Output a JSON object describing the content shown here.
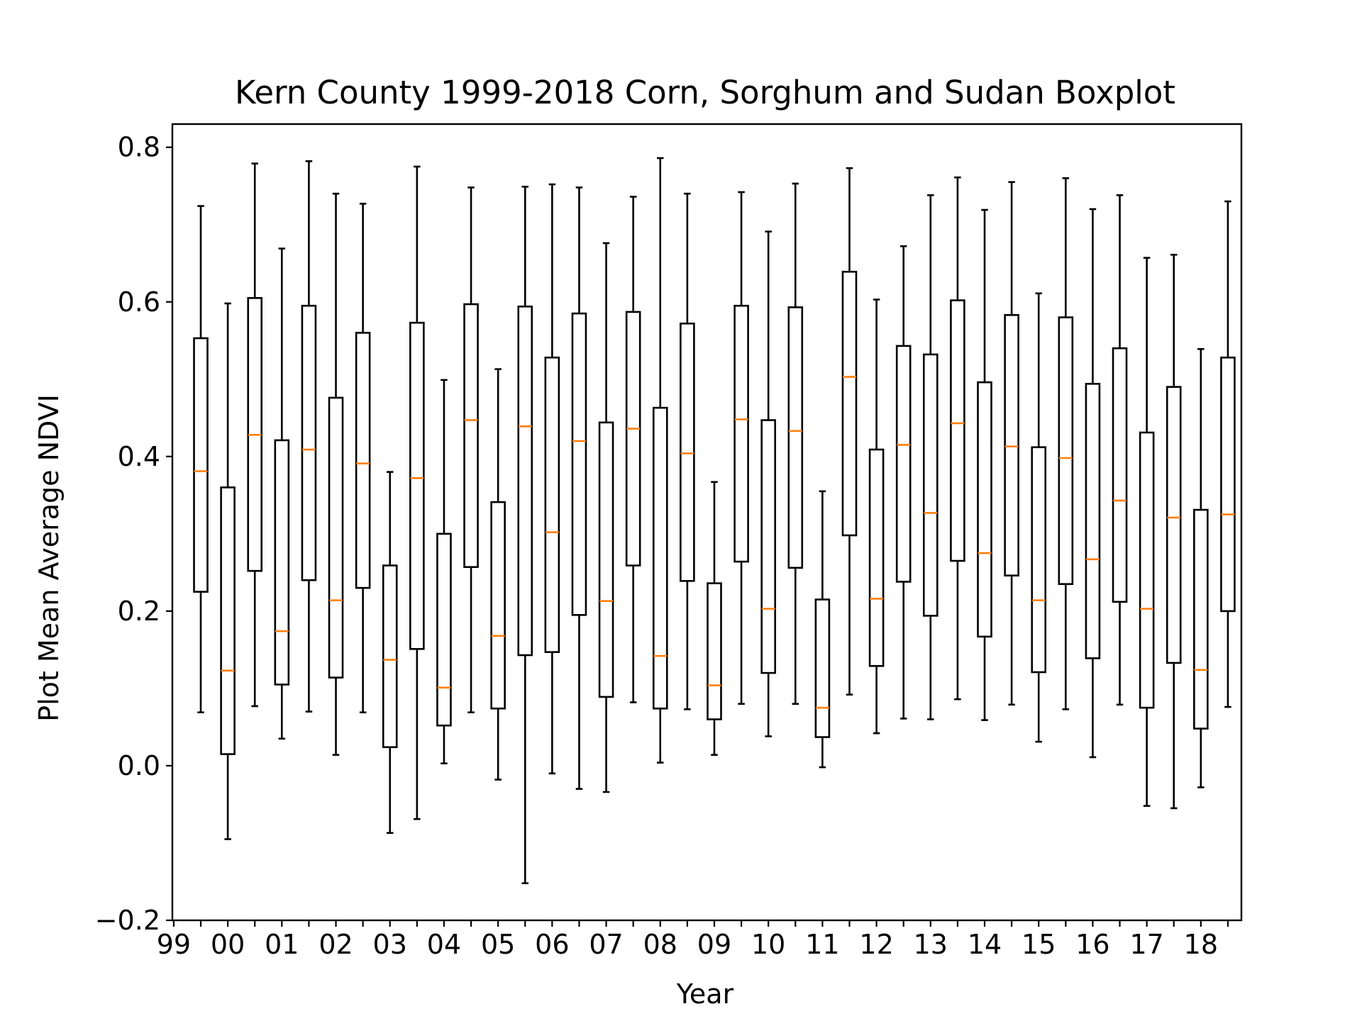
{
  "colors": {
    "box": "#000000",
    "median": "#ff7f0e",
    "background": "#ffffff"
  },
  "chart_data": {
    "type": "box",
    "title": "Kern County 1999-2018 Corn, Sorghum and Sudan Boxplot",
    "xlabel": "Year",
    "ylabel": "Plot Mean Average NDVI",
    "xlim": [
      -0.05,
      39.5
    ],
    "ylim": [
      -0.2,
      0.83
    ],
    "y_ticks": [
      "−0.2",
      "0.0",
      "0.2",
      "0.4",
      "0.6",
      "0.8"
    ],
    "y_tick_values": [
      -0.2,
      0.0,
      0.2,
      0.4,
      0.6,
      0.8
    ],
    "x_tick_labels": [
      "99",
      "00",
      "01",
      "02",
      "03",
      "04",
      "05",
      "06",
      "07",
      "08",
      "09",
      "10",
      "11",
      "12",
      "13",
      "14",
      "15",
      "16",
      "17",
      "18"
    ],
    "x_tick_label_positions": [
      0,
      2,
      4,
      6,
      8,
      10,
      12,
      14,
      16,
      18,
      20,
      22,
      24,
      26,
      28,
      30,
      32,
      34,
      36,
      38
    ],
    "x_minor_tick_positions": [
      1,
      3,
      5,
      7,
      9,
      11,
      13,
      15,
      17,
      19,
      21,
      23,
      25,
      27,
      29,
      31,
      33,
      35,
      37,
      39
    ],
    "grid": false,
    "boxes": [
      {
        "x": 1,
        "whislo": 0.069,
        "q1": 0.225,
        "med": 0.381,
        "q3": 0.553,
        "whishi": 0.724
      },
      {
        "x": 2,
        "whislo": -0.095,
        "q1": 0.015,
        "med": 0.123,
        "q3": 0.36,
        "whishi": 0.598
      },
      {
        "x": 3,
        "whislo": 0.077,
        "q1": 0.252,
        "med": 0.428,
        "q3": 0.605,
        "whishi": 0.779
      },
      {
        "x": 4,
        "whislo": 0.035,
        "q1": 0.105,
        "med": 0.174,
        "q3": 0.421,
        "whishi": 0.669
      },
      {
        "x": 5,
        "whislo": 0.07,
        "q1": 0.24,
        "med": 0.409,
        "q3": 0.595,
        "whishi": 0.782
      },
      {
        "x": 6,
        "whislo": 0.014,
        "q1": 0.114,
        "med": 0.214,
        "q3": 0.476,
        "whishi": 0.74
      },
      {
        "x": 7,
        "whislo": 0.069,
        "q1": 0.23,
        "med": 0.391,
        "q3": 0.56,
        "whishi": 0.727
      },
      {
        "x": 8,
        "whislo": -0.087,
        "q1": 0.024,
        "med": 0.137,
        "q3": 0.259,
        "whishi": 0.38
      },
      {
        "x": 9,
        "whislo": -0.069,
        "q1": 0.151,
        "med": 0.372,
        "q3": 0.573,
        "whishi": 0.775
      },
      {
        "x": 10,
        "whislo": 0.003,
        "q1": 0.052,
        "med": 0.101,
        "q3": 0.3,
        "whishi": 0.499
      },
      {
        "x": 11,
        "whislo": 0.069,
        "q1": 0.257,
        "med": 0.447,
        "q3": 0.597,
        "whishi": 0.748
      },
      {
        "x": 12,
        "whislo": -0.018,
        "q1": 0.074,
        "med": 0.168,
        "q3": 0.341,
        "whishi": 0.513
      },
      {
        "x": 13,
        "whislo": -0.152,
        "q1": 0.143,
        "med": 0.439,
        "q3": 0.594,
        "whishi": 0.749
      },
      {
        "x": 14,
        "whislo": -0.01,
        "q1": 0.147,
        "med": 0.302,
        "q3": 0.528,
        "whishi": 0.752
      },
      {
        "x": 15,
        "whislo": -0.03,
        "q1": 0.195,
        "med": 0.42,
        "q3": 0.585,
        "whishi": 0.748
      },
      {
        "x": 16,
        "whislo": -0.034,
        "q1": 0.089,
        "med": 0.213,
        "q3": 0.444,
        "whishi": 0.676
      },
      {
        "x": 17,
        "whislo": 0.082,
        "q1": 0.259,
        "med": 0.436,
        "q3": 0.587,
        "whishi": 0.736
      },
      {
        "x": 18,
        "whislo": 0.004,
        "q1": 0.074,
        "med": 0.142,
        "q3": 0.463,
        "whishi": 0.786
      },
      {
        "x": 19,
        "whislo": 0.073,
        "q1": 0.239,
        "med": 0.404,
        "q3": 0.572,
        "whishi": 0.74
      },
      {
        "x": 20,
        "whislo": 0.014,
        "q1": 0.06,
        "med": 0.104,
        "q3": 0.236,
        "whishi": 0.367
      },
      {
        "x": 21,
        "whislo": 0.08,
        "q1": 0.264,
        "med": 0.448,
        "q3": 0.595,
        "whishi": 0.742
      },
      {
        "x": 22,
        "whislo": 0.038,
        "q1": 0.12,
        "med": 0.203,
        "q3": 0.447,
        "whishi": 0.691
      },
      {
        "x": 23,
        "whislo": 0.08,
        "q1": 0.256,
        "med": 0.433,
        "q3": 0.593,
        "whishi": 0.753
      },
      {
        "x": 24,
        "whislo": -0.002,
        "q1": 0.037,
        "med": 0.075,
        "q3": 0.215,
        "whishi": 0.355
      },
      {
        "x": 25,
        "whislo": 0.092,
        "q1": 0.298,
        "med": 0.503,
        "q3": 0.639,
        "whishi": 0.773
      },
      {
        "x": 26,
        "whislo": 0.042,
        "q1": 0.129,
        "med": 0.216,
        "q3": 0.409,
        "whishi": 0.603
      },
      {
        "x": 27,
        "whislo": 0.061,
        "q1": 0.238,
        "med": 0.415,
        "q3": 0.543,
        "whishi": 0.672
      },
      {
        "x": 28,
        "whislo": 0.06,
        "q1": 0.194,
        "med": 0.327,
        "q3": 0.532,
        "whishi": 0.738
      },
      {
        "x": 29,
        "whislo": 0.086,
        "q1": 0.265,
        "med": 0.443,
        "q3": 0.602,
        "whishi": 0.761
      },
      {
        "x": 30,
        "whislo": 0.059,
        "q1": 0.167,
        "med": 0.275,
        "q3": 0.496,
        "whishi": 0.719
      },
      {
        "x": 31,
        "whislo": 0.079,
        "q1": 0.246,
        "med": 0.413,
        "q3": 0.583,
        "whishi": 0.755
      },
      {
        "x": 32,
        "whislo": 0.031,
        "q1": 0.121,
        "med": 0.214,
        "q3": 0.412,
        "whishi": 0.611
      },
      {
        "x": 33,
        "whislo": 0.073,
        "q1": 0.235,
        "med": 0.398,
        "q3": 0.58,
        "whishi": 0.76
      },
      {
        "x": 34,
        "whislo": 0.011,
        "q1": 0.139,
        "med": 0.267,
        "q3": 0.494,
        "whishi": 0.72
      },
      {
        "x": 35,
        "whislo": 0.079,
        "q1": 0.212,
        "med": 0.343,
        "q3": 0.54,
        "whishi": 0.738
      },
      {
        "x": 36,
        "whislo": -0.052,
        "q1": 0.075,
        "med": 0.203,
        "q3": 0.431,
        "whishi": 0.657
      },
      {
        "x": 37,
        "whislo": -0.055,
        "q1": 0.133,
        "med": 0.321,
        "q3": 0.49,
        "whishi": 0.661
      },
      {
        "x": 38,
        "whislo": -0.028,
        "q1": 0.048,
        "med": 0.124,
        "q3": 0.331,
        "whishi": 0.539
      },
      {
        "x": 39,
        "whislo": 0.076,
        "q1": 0.2,
        "med": 0.325,
        "q3": 0.528,
        "whishi": 0.73
      }
    ]
  }
}
